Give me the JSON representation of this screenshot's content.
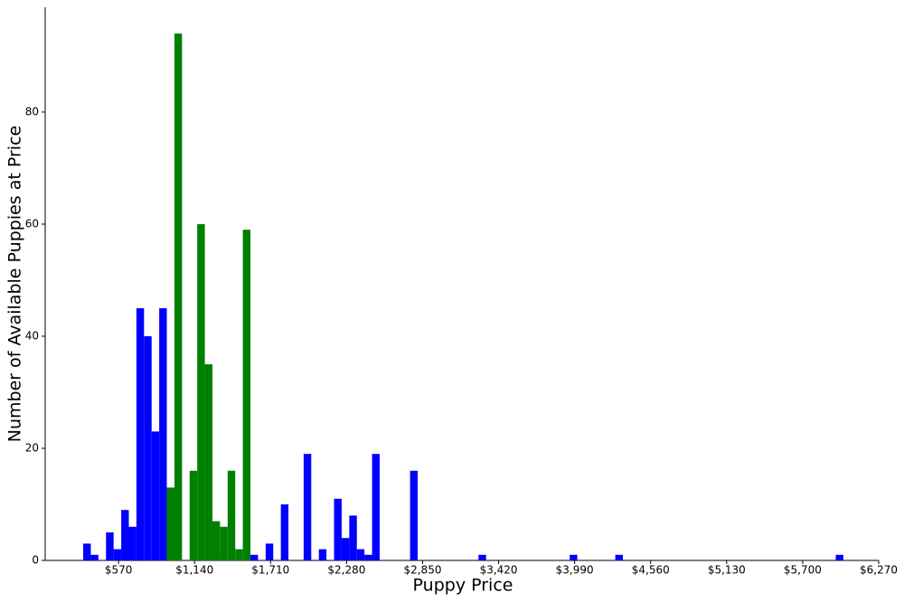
{
  "chart_data": {
    "type": "histogram",
    "x_label": "Puppy Price",
    "y_label": "Number of Available Puppies at Price",
    "bins": [
      305,
      362,
      419,
      476,
      533,
      590,
      647,
      704,
      761,
      818,
      875,
      932,
      989,
      1046,
      1103,
      1160,
      1217,
      1274,
      1331,
      1388,
      1445,
      1502,
      1559,
      1616,
      1673,
      1730,
      1787,
      1844,
      1901,
      1958,
      2015,
      2072,
      2129,
      2186,
      2243,
      2300,
      2357,
      2414,
      2471,
      2528,
      2585,
      2642,
      2699,
      2756,
      2813,
      2870,
      2927,
      2984,
      3041,
      3098,
      3155,
      3212,
      3269,
      3326,
      3383,
      3440,
      3497,
      3554,
      3611,
      3668,
      3725,
      3782,
      3839,
      3896,
      3953,
      4010,
      4067,
      4124,
      4181,
      4238,
      4295,
      4352,
      4409,
      4466,
      4523,
      4580,
      4637,
      4694,
      4751,
      4808,
      4865,
      4922,
      4979,
      5036,
      5093,
      5150,
      5207,
      5264,
      5321,
      5378,
      5435,
      5492,
      5549,
      5606,
      5663,
      5720,
      5777,
      5834,
      5891,
      5948,
      6005
    ],
    "values": [
      3,
      1,
      0,
      5,
      2,
      9,
      6,
      45,
      40,
      23,
      45,
      13,
      94,
      0,
      16,
      60,
      35,
      7,
      6,
      16,
      2,
      59,
      1,
      0,
      3,
      0,
      10,
      0,
      0,
      19,
      0,
      2,
      0,
      11,
      4,
      8,
      2,
      1,
      19,
      0,
      0,
      0,
      0,
      16,
      0,
      0,
      0,
      0,
      0,
      0,
      0,
      0,
      1,
      0,
      0,
      0,
      0,
      0,
      0,
      0,
      0,
      0,
      0,
      0,
      1,
      0,
      0,
      0,
      0,
      0,
      1,
      0,
      0,
      0,
      0,
      0,
      0,
      0,
      0,
      0,
      0,
      0,
      0,
      0,
      0,
      0,
      0,
      0,
      0,
      0,
      0,
      0,
      0,
      0,
      0,
      0,
      0,
      0,
      0,
      1
    ],
    "colors": [
      "#0000ff",
      "#0000ff",
      "#0000ff",
      "#0000ff",
      "#0000ff",
      "#0000ff",
      "#0000ff",
      "#0000ff",
      "#0000ff",
      "#0000ff",
      "#0000ff",
      "#008000",
      "#008000",
      "#008000",
      "#008000",
      "#008000",
      "#008000",
      "#008000",
      "#008000",
      "#008000",
      "#008000",
      "#008000",
      "#0000ff",
      "#0000ff",
      "#0000ff",
      "#0000ff",
      "#0000ff",
      "#0000ff",
      "#0000ff",
      "#0000ff",
      "#0000ff",
      "#0000ff",
      "#0000ff",
      "#0000ff",
      "#0000ff",
      "#0000ff",
      "#0000ff",
      "#0000ff",
      "#0000ff",
      "#0000ff",
      "#0000ff",
      "#0000ff",
      "#0000ff",
      "#0000ff",
      "#0000ff",
      "#0000ff",
      "#0000ff",
      "#0000ff",
      "#0000ff",
      "#0000ff",
      "#0000ff",
      "#0000ff",
      "#0000ff",
      "#0000ff",
      "#0000ff",
      "#0000ff",
      "#0000ff",
      "#0000ff",
      "#0000ff",
      "#0000ff",
      "#0000ff",
      "#0000ff",
      "#0000ff",
      "#0000ff",
      "#0000ff",
      "#0000ff",
      "#0000ff",
      "#0000ff",
      "#0000ff",
      "#0000ff",
      "#0000ff",
      "#0000ff",
      "#0000ff",
      "#0000ff",
      "#0000ff",
      "#0000ff",
      "#0000ff",
      "#0000ff",
      "#0000ff",
      "#0000ff",
      "#0000ff",
      "#0000ff",
      "#0000ff",
      "#0000ff",
      "#0000ff",
      "#0000ff",
      "#0000ff",
      "#0000ff",
      "#0000ff",
      "#0000ff",
      "#0000ff",
      "#0000ff",
      "#0000ff",
      "#0000ff",
      "#0000ff",
      "#0000ff",
      "#0000ff",
      "#0000ff",
      "#0000ff",
      "#0000ff"
    ],
    "xlim": [
      20,
      6270
    ],
    "xticks": [
      {
        "value": 570,
        "label": "$570"
      },
      {
        "value": 1140,
        "label": "$1,140"
      },
      {
        "value": 1710,
        "label": "$1,710"
      },
      {
        "value": 2280,
        "label": "$2,280"
      },
      {
        "value": 2850,
        "label": "$2,850"
      },
      {
        "value": 3420,
        "label": "$3,420"
      },
      {
        "value": 3990,
        "label": "$3,990"
      },
      {
        "value": 4560,
        "label": "$4,560"
      },
      {
        "value": 5130,
        "label": "$5,130"
      },
      {
        "value": 5700,
        "label": "$5,700"
      },
      {
        "value": 6270,
        "label": "$6,270"
      }
    ],
    "ylim": [
      0,
      98.7
    ],
    "yticks": [
      0,
      20,
      40,
      60,
      80
    ]
  }
}
